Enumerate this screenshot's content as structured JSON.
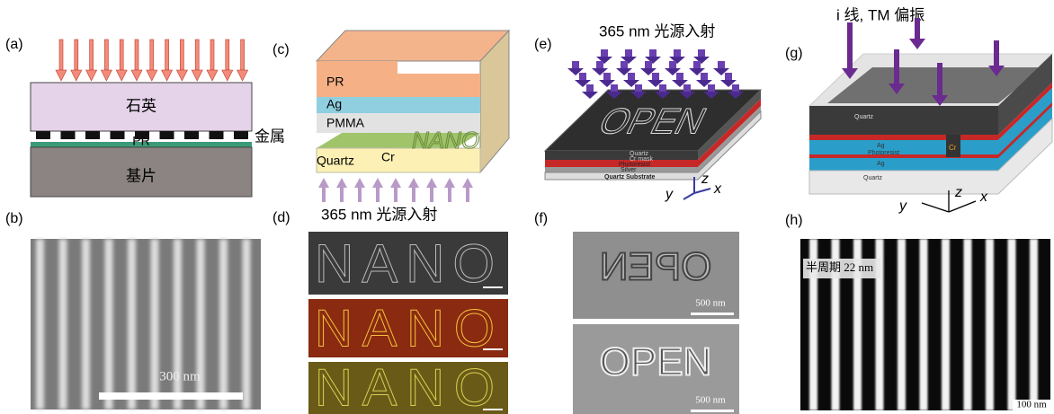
{
  "panel_labels": [
    "(a)",
    "(b)",
    "(c)",
    "(d)",
    "(e)",
    "(f)",
    "(g)",
    "(h)"
  ],
  "a": {
    "quartz": "石英",
    "metal": "金属",
    "pr": "PR",
    "substrate": "基片"
  },
  "b": {
    "scale": "300 nm"
  },
  "c": {
    "layers": [
      "PR",
      "Ag",
      "PMMA",
      "Quartz"
    ],
    "cr": "Cr",
    "pattern": "NANO",
    "illumination": "365 nm  光源入射"
  },
  "d": {
    "pattern": "NANO"
  },
  "e": {
    "illumination": "365 nm  光源入射",
    "pattern": "OPEN",
    "layers": [
      "Quartz",
      "Cr mask",
      "Photoresist",
      "Silver",
      "Quartz Substrate"
    ],
    "axes": [
      "z",
      "y",
      "x"
    ]
  },
  "f": {
    "pattern": "OPEN",
    "scale": "500 nm"
  },
  "g": {
    "illumination": "i 线, TM 偏振",
    "layers": [
      "Quartz",
      "Cr",
      "Ag",
      "Photoresist",
      "Ag",
      "Quartz"
    ],
    "axes": [
      "z",
      "y",
      "x"
    ]
  },
  "h": {
    "label": "半周期 22 nm",
    "scale": "100 nm"
  }
}
